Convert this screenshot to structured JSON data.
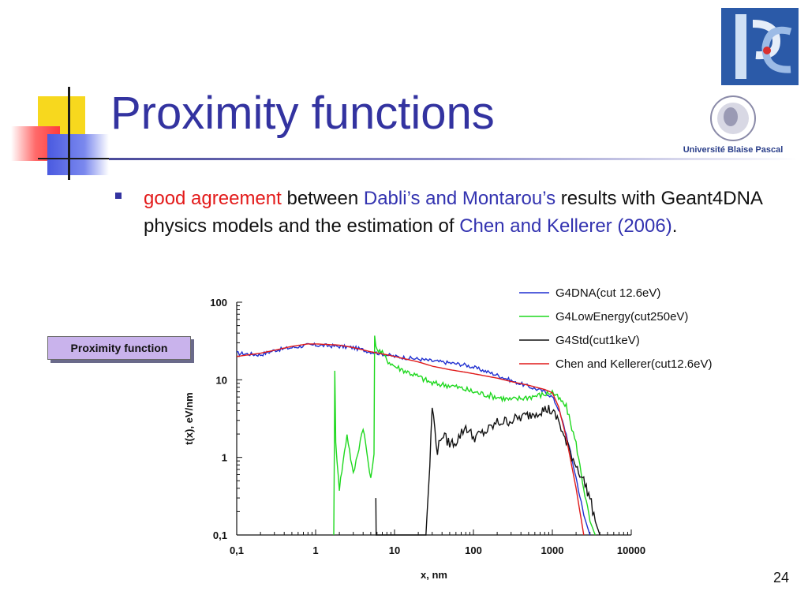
{
  "slide": {
    "title": "Proximity functions",
    "page_number": "24",
    "bullet": {
      "part1_red": "good agreement",
      "part2": " between ",
      "part3_blue": "Dabli’s and Montarou’s",
      "part4": " results with Geant4DNA physics models and the estimation of ",
      "part5_blue": "Chen and Kellerer (2006)",
      "part6": "."
    },
    "callout_label": "Proximity function",
    "logos": {
      "lpc": "lpc-logo",
      "ubp_text": "Université Blaise Pascal"
    }
  },
  "chart_data": {
    "type": "line",
    "xlabel": "x, nm",
    "ylabel": "t(x), eV/nm",
    "xscale": "log",
    "yscale": "log",
    "xlim": [
      0.1,
      10000
    ],
    "ylim": [
      0.1,
      100
    ],
    "x_ticks": [
      "0,1",
      "1",
      "10",
      "100",
      "1000",
      "10000"
    ],
    "y_ticks": [
      "0,1",
      "1",
      "10",
      "100"
    ],
    "grid": false,
    "legend_position": "top-right",
    "series": [
      {
        "name": "G4DNA(cut 12.6eV)",
        "color": "#1f2fd0",
        "x": [
          0.1,
          0.2,
          0.3,
          0.5,
          0.8,
          1,
          2,
          3,
          5,
          8,
          10,
          20,
          30,
          50,
          80,
          100,
          200,
          300,
          500,
          800,
          1000,
          1200,
          1500,
          2000,
          2500,
          3000
        ],
        "y": [
          22,
          21,
          24,
          26,
          28,
          28,
          27,
          26,
          23,
          21,
          20,
          18.5,
          17.5,
          16.5,
          15.5,
          14.5,
          11.5,
          9.8,
          8.2,
          7,
          6,
          4.2,
          2,
          0.55,
          0.18,
          0.1
        ]
      },
      {
        "name": "G4LowEnergy(cut250eV)",
        "color": "#1ed81e",
        "x": [
          1.7,
          1.75,
          1.8,
          2,
          2.5,
          3,
          4,
          5,
          5.5,
          5.6,
          6,
          7,
          8,
          10,
          20,
          30,
          50,
          80,
          100,
          200,
          300,
          500,
          800,
          1000,
          1500,
          2000,
          2500,
          3000,
          3500
        ],
        "y": [
          0.1,
          14,
          1.5,
          0.4,
          2,
          0.6,
          2.5,
          0.5,
          1.2,
          35,
          25,
          22,
          18,
          15,
          11,
          9,
          8.5,
          7.5,
          7,
          6,
          5.5,
          6,
          6.5,
          7,
          4.5,
          1.5,
          0.4,
          0.15,
          0.1
        ]
      },
      {
        "name": "G4Std(cut1keV)",
        "color": "#111111",
        "x": [
          5.8,
          5.85,
          6,
          25,
          28,
          30,
          35,
          40,
          50,
          60,
          80,
          100,
          150,
          200,
          300,
          500,
          700,
          900,
          1000,
          1200,
          1500,
          2000,
          2500,
          3000,
          3500,
          4000
        ],
        "y": [
          0.3,
          0.1,
          0.1,
          0.1,
          0.8,
          4.5,
          1.2,
          2,
          1.5,
          1.6,
          2.5,
          1.8,
          2.2,
          2.8,
          3,
          3.5,
          4,
          4.2,
          3.8,
          3,
          1.5,
          0.8,
          0.5,
          0.3,
          0.15,
          0.1
        ]
      },
      {
        "name": "Chen and Kellerer(cut12.6eV)",
        "color": "#e01a1a",
        "x": [
          0.1,
          0.2,
          0.3,
          0.5,
          0.8,
          1,
          2,
          3,
          5,
          8,
          10,
          20,
          30,
          50,
          80,
          100,
          200,
          300,
          500,
          800,
          1000,
          1200,
          1500,
          2000,
          2500
        ],
        "y": [
          20,
          22,
          24,
          27,
          29,
          29,
          28,
          26,
          23,
          21,
          20,
          17,
          15,
          13.5,
          12.5,
          12,
          10.5,
          9.5,
          8.5,
          7.5,
          6.8,
          4.5,
          1.8,
          0.4,
          0.1
        ]
      }
    ]
  }
}
